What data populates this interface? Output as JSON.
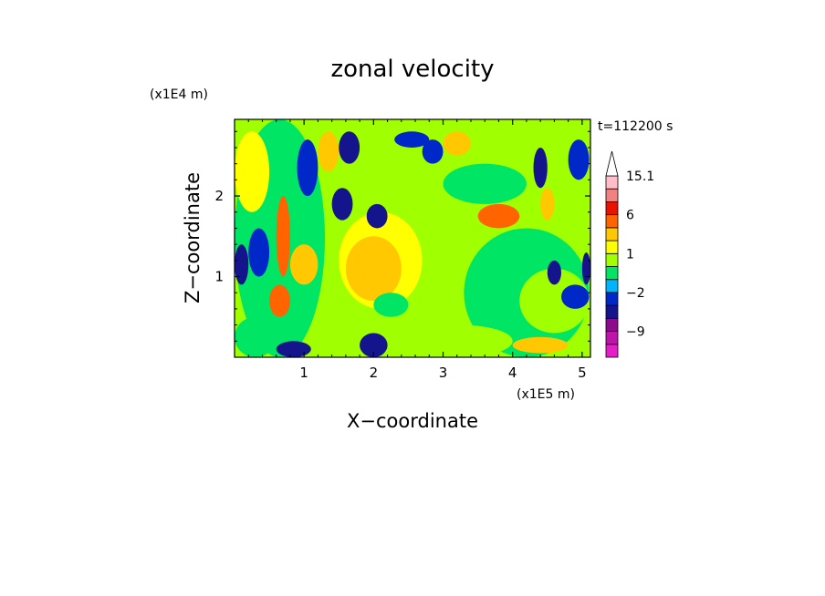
{
  "chart_data": {
    "type": "heatmap",
    "title": "zonal velocity",
    "xlabel": "X−coordinate",
    "ylabel": "Z−coordinate",
    "x_units": "(x1E5 m)",
    "y_units": "(x1E4 m)",
    "time_label": "t=112200 s",
    "xlim": [
      0,
      5.12
    ],
    "ylim": [
      0,
      2.95
    ],
    "x_ticks": [
      1,
      2,
      3,
      4,
      5
    ],
    "y_ticks": [
      1,
      2
    ],
    "x_tick_labels": [
      "1",
      "2",
      "3",
      "4",
      "5"
    ],
    "y_tick_labels": [
      "1",
      "2"
    ],
    "colorbar": {
      "levels": [
        -15.1,
        -12,
        -9,
        -6,
        -3,
        -2,
        -1,
        0,
        1,
        2,
        3,
        6,
        9,
        12,
        15.1
      ],
      "colors": [
        "#e61ec8",
        "#be14aa",
        "#8c0a8c",
        "#14148c",
        "#0028c8",
        "#00b4ff",
        "#00e664",
        "#a0ff00",
        "#ffff00",
        "#ffc800",
        "#ff6400",
        "#e61400",
        "#f08282",
        "#ffbec8"
      ],
      "labels": [
        "15.1",
        "6",
        "1",
        "−2",
        "−9"
      ],
      "label_values": [
        15.1,
        6,
        1,
        -2,
        -9
      ],
      "extend": "max"
    },
    "regions": [
      {
        "x": 0.0,
        "z": 0.0,
        "w": 5.12,
        "h": 2.95,
        "v": 0.6
      },
      {
        "x": 0.0,
        "z": 0.0,
        "w": 1.3,
        "h": 2.95,
        "v": -0.5
      },
      {
        "x": 1.3,
        "z": 0.4,
        "w": 1.6,
        "h": 1.4,
        "v": 0.6
      },
      {
        "x": 1.5,
        "z": 0.6,
        "w": 1.2,
        "h": 1.2,
        "v": 1.5
      },
      {
        "x": 1.6,
        "z": 0.7,
        "w": 0.8,
        "h": 0.8,
        "v": 2.5
      },
      {
        "x": 3.3,
        "z": 0.0,
        "w": 1.8,
        "h": 1.6,
        "v": -0.5
      },
      {
        "x": 3.0,
        "z": 1.9,
        "w": 1.2,
        "h": 0.5,
        "v": -0.5
      },
      {
        "x": 4.1,
        "z": 0.3,
        "w": 1.0,
        "h": 0.8,
        "v": 0.6
      },
      {
        "x": 2.5,
        "z": 0.0,
        "w": 1.5,
        "h": 0.4,
        "v": 0.6
      },
      {
        "x": 0.0,
        "z": 0.0,
        "w": 0.6,
        "h": 0.5,
        "v": -0.5
      },
      {
        "x": 0.0,
        "z": 1.8,
        "w": 0.5,
        "h": 1.0,
        "v": 1.5
      },
      {
        "x": 0.0,
        "z": 0.9,
        "w": 0.2,
        "h": 0.5,
        "v": -5
      },
      {
        "x": 0.2,
        "z": 1.0,
        "w": 0.3,
        "h": 0.6,
        "v": -2.5
      },
      {
        "x": 0.6,
        "z": 1.0,
        "w": 0.2,
        "h": 1.0,
        "v": 4
      },
      {
        "x": 0.5,
        "z": 0.5,
        "w": 0.3,
        "h": 0.4,
        "v": 4
      },
      {
        "x": 0.8,
        "z": 0.9,
        "w": 0.4,
        "h": 0.5,
        "v": 2.5
      },
      {
        "x": 0.9,
        "z": 2.0,
        "w": 0.3,
        "h": 0.7,
        "v": -2.5
      },
      {
        "x": 1.2,
        "z": 2.3,
        "w": 0.3,
        "h": 0.5,
        "v": 2.5
      },
      {
        "x": 1.4,
        "z": 1.7,
        "w": 0.3,
        "h": 0.4,
        "v": -5
      },
      {
        "x": 1.5,
        "z": 2.4,
        "w": 0.3,
        "h": 0.4,
        "v": -5
      },
      {
        "x": 1.9,
        "z": 1.6,
        "w": 0.3,
        "h": 0.3,
        "v": -5
      },
      {
        "x": 2.3,
        "z": 2.6,
        "w": 0.5,
        "h": 0.2,
        "v": -2.5
      },
      {
        "x": 2.7,
        "z": 2.4,
        "w": 0.3,
        "h": 0.3,
        "v": -2.5
      },
      {
        "x": 3.0,
        "z": 2.5,
        "w": 0.4,
        "h": 0.3,
        "v": 2.5
      },
      {
        "x": 3.5,
        "z": 1.6,
        "w": 0.6,
        "h": 0.3,
        "v": 4
      },
      {
        "x": 4.3,
        "z": 2.1,
        "w": 0.2,
        "h": 0.5,
        "v": -5
      },
      {
        "x": 4.4,
        "z": 1.7,
        "w": 0.2,
        "h": 0.4,
        "v": 2.5
      },
      {
        "x": 4.8,
        "z": 2.2,
        "w": 0.3,
        "h": 0.5,
        "v": -2.5
      },
      {
        "x": 4.5,
        "z": 0.9,
        "w": 0.2,
        "h": 0.3,
        "v": -5
      },
      {
        "x": 5.0,
        "z": 0.9,
        "w": 0.12,
        "h": 0.4,
        "v": -5
      },
      {
        "x": 4.7,
        "z": 0.6,
        "w": 0.4,
        "h": 0.3,
        "v": -2.5
      },
      {
        "x": 1.8,
        "z": 0.0,
        "w": 0.4,
        "h": 0.3,
        "v": -5
      },
      {
        "x": 0.6,
        "z": 0.0,
        "w": 0.5,
        "h": 0.2,
        "v": -5
      },
      {
        "x": 2.0,
        "z": 0.5,
        "w": 0.5,
        "h": 0.3,
        "v": -0.5
      },
      {
        "x": 4.0,
        "z": 0.05,
        "w": 0.8,
        "h": 0.2,
        "v": 2.5
      }
    ]
  }
}
